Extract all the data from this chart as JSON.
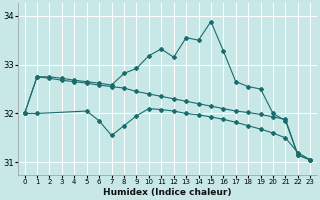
{
  "xlabel": "Humidex (Indice chaleur)",
  "bg_color": "#c8e8e8",
  "grid_color": "#ffffff",
  "line_color": "#1a6b6b",
  "ylim": [
    30.75,
    34.25
  ],
  "xlim": [
    -0.5,
    23.5
  ],
  "yticks": [
    31,
    32,
    33,
    34
  ],
  "xticks": [
    0,
    1,
    2,
    3,
    4,
    5,
    6,
    7,
    8,
    9,
    10,
    11,
    12,
    13,
    14,
    15,
    16,
    17,
    18,
    19,
    20,
    21,
    22,
    23
  ],
  "line1_x": [
    0,
    1,
    2,
    3,
    4,
    5,
    6,
    7,
    8,
    9,
    10,
    11,
    12,
    13,
    14,
    15,
    16,
    17,
    18,
    19,
    20,
    21,
    22,
    23
  ],
  "line1_y": [
    32.0,
    32.75,
    32.75,
    32.72,
    32.68,
    32.65,
    32.62,
    32.58,
    32.82,
    32.92,
    33.18,
    33.32,
    33.15,
    33.55,
    33.5,
    33.88,
    33.28,
    32.65,
    32.55,
    32.5,
    32.0,
    31.85,
    31.15,
    31.05
  ],
  "line2_x": [
    0,
    1,
    2,
    3,
    4,
    5,
    6,
    7,
    8,
    9,
    10,
    11,
    12,
    13,
    14,
    15,
    16,
    17,
    18,
    19,
    20,
    21,
    22,
    23
  ],
  "line2_y": [
    32.0,
    32.75,
    32.72,
    32.68,
    32.65,
    32.62,
    32.58,
    32.55,
    32.52,
    32.45,
    32.4,
    32.35,
    32.3,
    32.25,
    32.2,
    32.15,
    32.1,
    32.05,
    32.02,
    31.98,
    31.93,
    31.88,
    31.15,
    31.05
  ],
  "line3_x": [
    0,
    1,
    5,
    6,
    7,
    8,
    9,
    10,
    11,
    12,
    13,
    14,
    15,
    16,
    17,
    18,
    19,
    20,
    21,
    22,
    23
  ],
  "line3_y": [
    32.0,
    32.0,
    32.05,
    31.85,
    31.55,
    31.75,
    31.95,
    32.1,
    32.08,
    32.05,
    32.0,
    31.97,
    31.93,
    31.88,
    31.82,
    31.75,
    31.68,
    31.6,
    31.5,
    31.2,
    31.05
  ]
}
